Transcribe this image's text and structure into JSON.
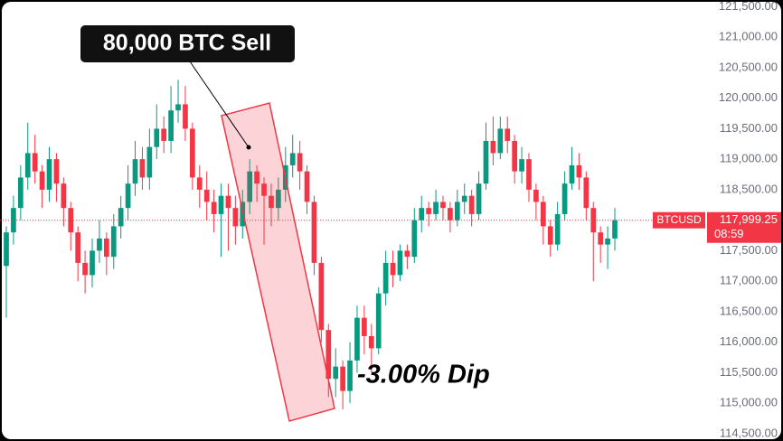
{
  "chart_data": {
    "type": "candlestick",
    "symbol": "BTCUSD",
    "price_label": {
      "value": 117999.25,
      "label": "117,999.25"
    },
    "countdown": "08:59",
    "annotations": [
      "80,000 BTC Sell",
      "-3.00% Dip"
    ],
    "up_color": "#089981",
    "down_color": "#f23645",
    "ylim": [
      114380,
      121610
    ],
    "yticks": [
      {
        "value": 114500,
        "label": "114,500.00"
      },
      {
        "value": 115000,
        "label": "115,000.00"
      },
      {
        "value": 115500,
        "label": "115,500.00"
      },
      {
        "value": 116000,
        "label": "116,000.00"
      },
      {
        "value": 116500,
        "label": "116,500.00"
      },
      {
        "value": 117000,
        "label": "117,000.00"
      },
      {
        "value": 117500,
        "label": "117,500.00"
      },
      {
        "value": 118000,
        "label": "118,000.00"
      },
      {
        "value": 118500,
        "label": "118,500.00"
      },
      {
        "value": 119000,
        "label": "119,000.00"
      },
      {
        "value": 119500,
        "label": "119,500.00"
      },
      {
        "value": 120000,
        "label": "120,000.00"
      },
      {
        "value": 120500,
        "label": "120,500.00"
      },
      {
        "value": 121000,
        "label": "121,000.00"
      },
      {
        "value": 121500,
        "label": "121,500.00"
      }
    ],
    "open": [
      117250,
      117800,
      118200,
      118700,
      119100,
      118800,
      118500,
      119000,
      118600,
      118200,
      117800,
      117300,
      117100,
      117500,
      117700,
      117400,
      117900,
      118200,
      118600,
      119000,
      118700,
      119200,
      119500,
      119300,
      119800,
      119900,
      119500,
      118700,
      118500,
      118300,
      118100,
      118400,
      118200,
      117900,
      118300,
      118800,
      118600,
      118400,
      118200,
      118500,
      118900,
      119100,
      118800,
      118300,
      117300,
      116200,
      115400,
      115600,
      115200,
      115700,
      116400,
      116100,
      115900,
      116800,
      117300,
      117100,
      117500,
      117400,
      118000,
      118200,
      118100,
      118300,
      118200,
      118000,
      118300,
      118400,
      118100,
      118600,
      119300,
      119100,
      119500,
      119300,
      118800,
      119000,
      118500,
      118300,
      117900,
      117600,
      118100,
      118600,
      118900,
      118700,
      118200,
      117800,
      117600,
      117700
    ],
    "high": [
      117900,
      118400,
      118900,
      119600,
      119400,
      118900,
      119200,
      119100,
      118700,
      118300,
      117900,
      117500,
      117700,
      118000,
      117800,
      118100,
      118400,
      118900,
      119300,
      119200,
      119500,
      119900,
      119700,
      120200,
      120300,
      120200,
      119600,
      118900,
      118800,
      118500,
      118600,
      118600,
      118400,
      118500,
      119000,
      118900,
      118700,
      118600,
      118700,
      119200,
      119400,
      119300,
      118900,
      118400,
      117400,
      116300,
      115900,
      115700,
      116000,
      116600,
      116600,
      116300,
      116900,
      117500,
      117500,
      117600,
      117600,
      118200,
      118400,
      118300,
      118500,
      118400,
      118300,
      118500,
      118600,
      118500,
      118800,
      119600,
      119700,
      119700,
      119700,
      119400,
      119200,
      119100,
      118600,
      118400,
      118000,
      118300,
      118800,
      119200,
      119100,
      118800,
      118300,
      117900,
      117900,
      118200
    ],
    "low": [
      116400,
      117600,
      118000,
      118500,
      118600,
      118200,
      118300,
      118300,
      117900,
      117500,
      117000,
      116800,
      116900,
      117300,
      117100,
      117200,
      117700,
      118000,
      118400,
      118500,
      118500,
      119000,
      119100,
      119100,
      119600,
      119300,
      118500,
      118200,
      118000,
      117800,
      117400,
      117500,
      117600,
      117700,
      118100,
      118300,
      117600,
      117900,
      118000,
      118300,
      118700,
      118500,
      118100,
      117100,
      116000,
      115100,
      115100,
      114900,
      115000,
      115500,
      115800,
      115500,
      115800,
      116600,
      116900,
      117000,
      117200,
      117300,
      117800,
      117900,
      118000,
      118000,
      117800,
      117900,
      118100,
      117900,
      118000,
      118500,
      118900,
      119000,
      119100,
      118600,
      118600,
      118300,
      118000,
      117600,
      117400,
      117500,
      118000,
      118500,
      118500,
      118000,
      117000,
      117300,
      117200,
      117500
    ],
    "close": [
      117800,
      118200,
      118700,
      119100,
      118800,
      118500,
      119000,
      118600,
      118200,
      117800,
      117300,
      117100,
      117500,
      117700,
      117400,
      117900,
      118200,
      118600,
      119000,
      118700,
      119200,
      119500,
      119300,
      119800,
      119900,
      119500,
      118700,
      118500,
      118300,
      118100,
      118400,
      118200,
      117900,
      118300,
      118800,
      118600,
      118400,
      118200,
      118500,
      118900,
      119100,
      118800,
      118300,
      117300,
      116200,
      115400,
      115600,
      115200,
      115700,
      116400,
      116100,
      115900,
      116800,
      117300,
      117100,
      117500,
      117400,
      118000,
      118200,
      118100,
      118300,
      118200,
      118000,
      118300,
      118400,
      118100,
      118600,
      119300,
      119100,
      119500,
      119300,
      118800,
      119000,
      118500,
      118300,
      117900,
      117600,
      118100,
      118600,
      118900,
      118700,
      118200,
      117800,
      117600,
      117700,
      118000
    ]
  }
}
